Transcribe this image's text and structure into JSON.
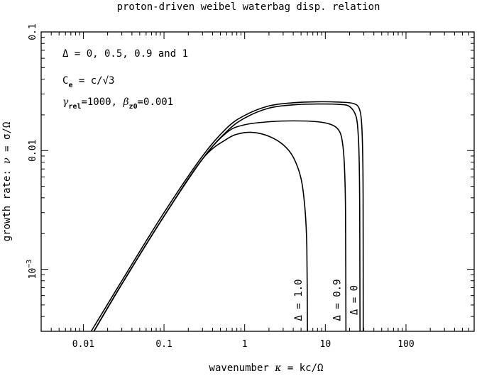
{
  "chart_data": {
    "type": "line",
    "title": "proton-driven weibel waterbag disp. relation",
    "xlabel_prefix": "wavenumber",
    "xlabel_symbol": "κ",
    "xlabel_suffix": "= kc/Ω",
    "ylabel_prefix": "growth rate:",
    "ylabel_symbol": "ν",
    "ylabel_suffix": "= σ/Ω",
    "xscale": "log",
    "yscale": "log",
    "xlim": [
      0.003,
      700
    ],
    "ylim": [
      0.0003,
      0.1
    ],
    "x_ticks": [
      {
        "value": 0.01,
        "label": "0.01"
      },
      {
        "value": 0.1,
        "label": "0.1"
      },
      {
        "value": 1,
        "label": "1"
      },
      {
        "value": 10,
        "label": "10"
      },
      {
        "value": 100,
        "label": "100"
      }
    ],
    "y_ticks": [
      {
        "value": 0.001,
        "label": "10",
        "exp": "−3"
      },
      {
        "value": 0.01,
        "label": "0.01",
        "exp": ""
      },
      {
        "value": 0.1,
        "label": "0.1",
        "exp": ""
      }
    ],
    "annotations": {
      "line1": "Δ = 0, 0.5, 0.9 and 1",
      "line2_main": "C",
      "line2_sub": "e",
      "line2_rest": " = c/√3",
      "line3_gamma": "γ",
      "line3_gamma_sub": "rel",
      "line3_mid": "=1000, ",
      "line3_beta": "β",
      "line3_beta_sub": "z0",
      "line3_end": "=0.001"
    },
    "series": [
      {
        "label": "",
        "points": [
          [
            0.0135,
            0.0003
          ],
          [
            0.03,
            0.00075
          ],
          [
            0.1,
            0.0028
          ],
          [
            0.3,
            0.0085
          ],
          [
            0.6,
            0.0145
          ],
          [
            1,
            0.0188
          ],
          [
            2,
            0.0228
          ],
          [
            4,
            0.0243
          ],
          [
            8,
            0.0247
          ],
          [
            15,
            0.0245
          ],
          [
            20,
            0.0235
          ],
          [
            24,
            0.0195
          ],
          [
            25.5,
            0.014
          ],
          [
            26.3,
            0.008
          ],
          [
            26.7,
            0.003
          ],
          [
            26.9,
            0.0003
          ]
        ]
      },
      {
        "label": "Δ = 0",
        "points": [
          [
            0.0125,
            0.0003
          ],
          [
            0.03,
            0.0008
          ],
          [
            0.1,
            0.003
          ],
          [
            0.3,
            0.009
          ],
          [
            0.6,
            0.0155
          ],
          [
            1,
            0.0198
          ],
          [
            2,
            0.0238
          ],
          [
            4,
            0.0253
          ],
          [
            8,
            0.0258
          ],
          [
            15,
            0.0256
          ],
          [
            22,
            0.025
          ],
          [
            26,
            0.023
          ],
          [
            28,
            0.018
          ],
          [
            29,
            0.01
          ],
          [
            29.4,
            0.004
          ],
          [
            29.5,
            0.0003
          ]
        ]
      },
      {
        "label": "Δ = 0.9",
        "points": [
          [
            0.0135,
            0.0003
          ],
          [
            0.03,
            0.00075
          ],
          [
            0.1,
            0.0028
          ],
          [
            0.3,
            0.0085
          ],
          [
            0.6,
            0.0142
          ],
          [
            1,
            0.0165
          ],
          [
            2,
            0.0175
          ],
          [
            4,
            0.0178
          ],
          [
            8,
            0.0175
          ],
          [
            12,
            0.0165
          ],
          [
            15,
            0.0145
          ],
          [
            16.5,
            0.011
          ],
          [
            17.3,
            0.007
          ],
          [
            17.8,
            0.003
          ],
          [
            18,
            0.0003
          ]
        ]
      },
      {
        "label": "Δ = 1.0",
        "points": [
          [
            0.0135,
            0.0003
          ],
          [
            0.03,
            0.00075
          ],
          [
            0.1,
            0.0028
          ],
          [
            0.3,
            0.0085
          ],
          [
            0.6,
            0.0125
          ],
          [
            0.9,
            0.014
          ],
          [
            1.3,
            0.0142
          ],
          [
            2,
            0.0132
          ],
          [
            3,
            0.0112
          ],
          [
            4,
            0.0088
          ],
          [
            5,
            0.0058
          ],
          [
            5.6,
            0.0032
          ],
          [
            5.9,
            0.0015
          ],
          [
            6,
            0.0003
          ]
        ]
      }
    ],
    "grid": false,
    "legend": "none"
  }
}
